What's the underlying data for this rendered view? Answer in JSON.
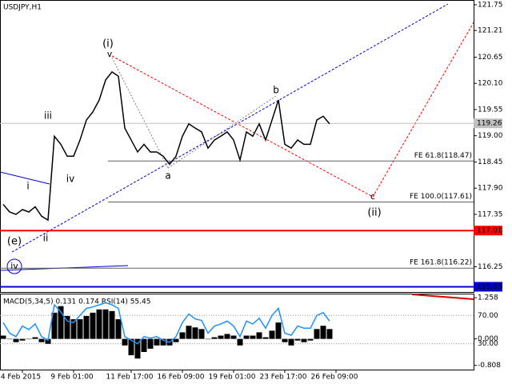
{
  "chart_data": [
    {
      "type": "line",
      "title": "USDJPY,H1",
      "categories": [
        null,
        null,
        null,
        "4 Feb 2015",
        null,
        null,
        null,
        null,
        null,
        null,
        null,
        "9 Feb 01:00",
        null,
        null,
        null,
        null,
        null,
        null,
        null,
        null,
        "11 Feb 17:00",
        null,
        null,
        null,
        null,
        null,
        null,
        null,
        "16 Feb 09:00",
        null,
        null,
        null,
        null,
        null,
        null,
        null,
        "19 Feb 01:00",
        null,
        null,
        null,
        null,
        null,
        null,
        null,
        "23 Feb 17:00",
        null,
        null,
        null,
        null,
        null,
        null,
        null,
        "26 Feb 09:00"
      ],
      "values": [
        117.56,
        117.4,
        117.35,
        117.45,
        117.4,
        117.51,
        117.31,
        117.23,
        118.99,
        118.82,
        118.57,
        118.57,
        118.91,
        119.33,
        119.5,
        119.75,
        120.17,
        120.34,
        120.25,
        119.16,
        118.91,
        118.66,
        118.82,
        118.66,
        118.66,
        118.57,
        118.4,
        118.57,
        118.99,
        119.25,
        119.16,
        119.08,
        118.74,
        118.91,
        118.99,
        119.08,
        118.91,
        118.49,
        119.08,
        118.99,
        119.25,
        118.91,
        119.33,
        119.75,
        118.82,
        118.74,
        118.91,
        118.82,
        118.82,
        119.33,
        119.41,
        119.25,
        null
      ],
      "color": "#000000",
      "ylim": [
        115.72,
        121.85
      ],
      "yticks": [
        121.75,
        121.21,
        120.65,
        {
          "value": 120.1,
          "label": "120.10"
        },
        119.55,
        {
          "value": 119,
          "label": "119.00"
        },
        118.45,
        {
          "value": 117.9,
          "label": "117.90"
        },
        117.35,
        116.25
      ],
      "price_lines": [
        {
          "value": 119.26,
          "color": "#c0c0c0"
        },
        {
          "value": 117.01,
          "color": "#ff0000"
        },
        {
          "value": 115.83,
          "color": "#0000cd"
        }
      ],
      "levels": [
        {
          "label": "FE 61.8(118.47)",
          "value": 118.47
        },
        {
          "label": "FE 100.0(117.61)",
          "value": 117.61
        },
        {
          "label": "FE 161.8(116.22)",
          "value": 116.22
        }
      ],
      "annotations": [
        "(i)",
        "v",
        "(ii)",
        "(e)",
        "iv",
        "i",
        "ii",
        "iii",
        "iv",
        "a",
        "b",
        "c"
      ]
    },
    {
      "type": "combo",
      "title": "MACD(5,34,5) 0.131 0.174 RSI(14) 55.45",
      "series": [
        {
          "color": "#000000",
          "values": [
            0.1,
            0.0,
            -0.1,
            -0.05,
            0.0,
            0.05,
            -0.1,
            -0.15,
            0.8,
            1.0,
            0.7,
            0.6,
            0.6,
            0.7,
            0.8,
            0.9,
            0.9,
            0.85,
            0.6,
            -0.2,
            -0.5,
            -0.6,
            -0.4,
            -0.3,
            -0.2,
            -0.2,
            -0.2,
            -0.1,
            0.2,
            0.4,
            0.35,
            0.3,
            0.0,
            0.05,
            0.1,
            0.15,
            0.1,
            -0.2,
            0.1,
            0.1,
            0.2,
            0.05,
            0.25,
            0.5,
            -0.1,
            -0.2,
            -0.05,
            -0.1,
            -0.05,
            0.3,
            0.4,
            0.3,
            null
          ]
        },
        {
          "color": "#1e90ff",
          "axis": "y2",
          "values": [
            60,
            45,
            40,
            55,
            50,
            58,
            40,
            35,
            85,
            75,
            62,
            60,
            70,
            80,
            82,
            85,
            88,
            85,
            80,
            40,
            35,
            30,
            40,
            38,
            40,
            35,
            32,
            40,
            60,
            72,
            65,
            63,
            45,
            55,
            58,
            62,
            55,
            40,
            62,
            58,
            66,
            52,
            70,
            80,
            45,
            42,
            55,
            52,
            52,
            70,
            74,
            62,
            null
          ]
        }
      ],
      "ylim": [
        -0.938,
        1.383
      ],
      "yticks": [
        1.258,
        {
          "value": 0,
          "label": "0.000"
        },
        -0.808
      ],
      "y2lim": [
        -6.6,
        100.9
      ],
      "y2ticks": [
        {
          "value": 70,
          "label": "70.00"
        },
        {
          "value": 30,
          "label": "30.00"
        }
      ]
    }
  ]
}
